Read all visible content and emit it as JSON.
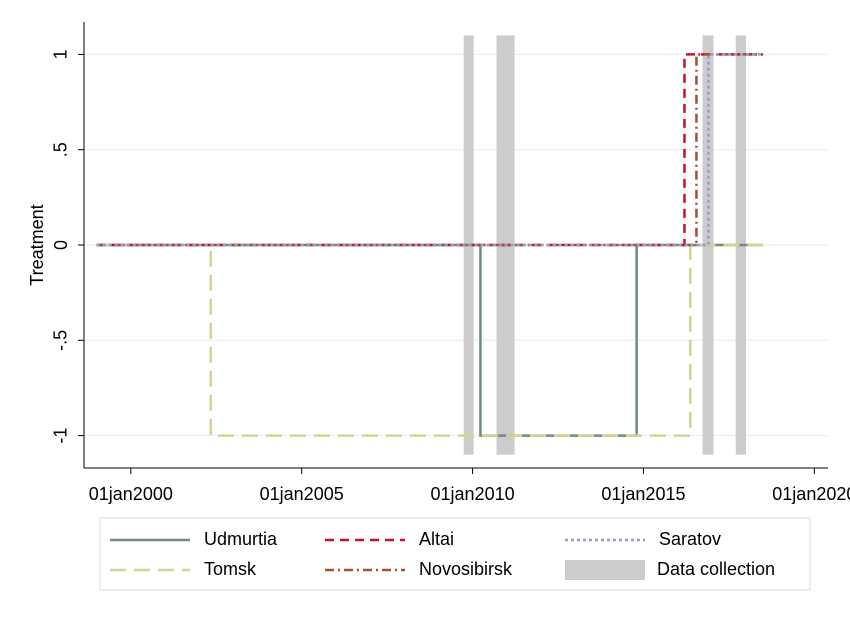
{
  "chart_data": {
    "type": "line",
    "y_label": "Treatment",
    "xlim": [
      1998.63,
      2020.4
    ],
    "xticks": [
      {
        "value": 2000,
        "label": "01jan2000"
      },
      {
        "value": 2005,
        "label": "01jan2005"
      },
      {
        "value": 2010,
        "label": "01jan2010"
      },
      {
        "value": 2015,
        "label": "01jan2015"
      },
      {
        "value": 2020,
        "label": "01jan2020"
      }
    ],
    "ylim": [
      -1.17,
      1.17
    ],
    "yticks": [
      -1,
      {
        "value": -0.5,
        "label": "-.5"
      },
      0,
      {
        "value": 0.5,
        "label": ".5"
      },
      1
    ],
    "grid": true,
    "legend": "bottom",
    "series": [
      {
        "name": "Udmurtia",
        "color": "#6b8e7f",
        "dash": "solid",
        "x": [
          1999,
          2010.23,
          2010.23,
          2014.8,
          2014.8,
          2018.5
        ],
        "values": [
          0,
          0,
          -1,
          -1,
          0,
          0
        ]
      },
      {
        "name": "Tomsk",
        "color": "#d6d38e",
        "dash": "long-dash",
        "x": [
          1999,
          2002.34,
          2002.34,
          2016.37,
          2016.37,
          2018.5
        ],
        "values": [
          0,
          0,
          -1,
          -1,
          0,
          0
        ]
      },
      {
        "name": "Altai",
        "color": "#c8102e",
        "dash": "dash",
        "x": [
          1999,
          2016.2,
          2016.2,
          2018.5
        ],
        "values": [
          0,
          0,
          1,
          1
        ]
      },
      {
        "name": "Novosibirsk",
        "color": "#a0522d",
        "dash": "dash-dot",
        "x": [
          1999,
          2016.55,
          2016.55,
          2018.5
        ],
        "values": [
          0,
          0,
          1,
          1
        ]
      },
      {
        "name": "Saratov",
        "color": "#9a9ad8",
        "dash": "dot",
        "x": [
          1999,
          2016.9,
          2016.9,
          2018.5
        ],
        "values": [
          0,
          0,
          1,
          1
        ]
      }
    ],
    "bands": {
      "name": "Data collection",
      "color": "#cccccc",
      "y_range": [
        -1.1,
        1.1
      ],
      "x_ranges": [
        [
          2009.74,
          2010.03
        ],
        [
          2010.7,
          2011.23
        ],
        [
          2016.73,
          2017.05
        ],
        [
          2017.7,
          2018.0
        ]
      ]
    }
  }
}
